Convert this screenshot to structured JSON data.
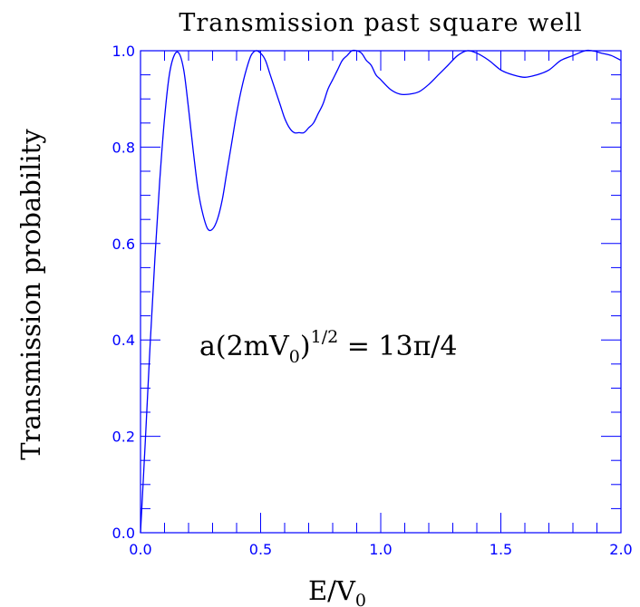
{
  "chart_data": {
    "type": "line",
    "title": "Transmission past square well",
    "xlabel": "E/V",
    "xlabel_sub": "0",
    "ylabel": "Transmission probability",
    "xlim": [
      0,
      2
    ],
    "ylim": [
      0,
      1
    ],
    "x_ticks": [
      "0.0",
      "0.5",
      "1.0",
      "1.5",
      "2.0"
    ],
    "y_ticks": [
      "0.0",
      "0.2",
      "0.4",
      "0.6",
      "0.8",
      "1.0"
    ],
    "grid": false,
    "annotation": {
      "prefix": "a(2mV",
      "sub": "0",
      "close": ")",
      "sup": "1/2",
      "rhs": " = 13π/4"
    },
    "series": [
      {
        "x": [
          0.0,
          0.02,
          0.04,
          0.06,
          0.08,
          0.1,
          0.12,
          0.14,
          0.16,
          0.18,
          0.2,
          0.22,
          0.24,
          0.26,
          0.28,
          0.3,
          0.32,
          0.34,
          0.36,
          0.38,
          0.4,
          0.42,
          0.44,
          0.46,
          0.48,
          0.5,
          0.52,
          0.54,
          0.56,
          0.58,
          0.6,
          0.62,
          0.64,
          0.66,
          0.68,
          0.7,
          0.72,
          0.74,
          0.76,
          0.78,
          0.8,
          0.82,
          0.84,
          0.86,
          0.88,
          0.9,
          0.92,
          0.94,
          0.96,
          0.98,
          1.0,
          1.04,
          1.08,
          1.12,
          1.16,
          1.2,
          1.24,
          1.28,
          1.32,
          1.36,
          1.4,
          1.45,
          1.5,
          1.55,
          1.6,
          1.65,
          1.7,
          1.75,
          1.8,
          1.85,
          1.88,
          1.92,
          1.96,
          2.0
        ],
        "y": [
          0.0,
          0.19,
          0.39,
          0.57,
          0.73,
          0.86,
          0.95,
          0.99,
          0.995,
          0.96,
          0.88,
          0.79,
          0.71,
          0.66,
          0.63,
          0.63,
          0.65,
          0.69,
          0.75,
          0.81,
          0.87,
          0.92,
          0.96,
          0.99,
          1.0,
          0.995,
          0.98,
          0.95,
          0.92,
          0.89,
          0.86,
          0.84,
          0.83,
          0.83,
          0.83,
          0.84,
          0.85,
          0.87,
          0.89,
          0.92,
          0.94,
          0.96,
          0.98,
          0.99,
          1.0,
          1.0,
          0.995,
          0.98,
          0.97,
          0.95,
          0.94,
          0.92,
          0.91,
          0.91,
          0.915,
          0.93,
          0.95,
          0.97,
          0.99,
          1.0,
          0.995,
          0.98,
          0.96,
          0.95,
          0.945,
          0.95,
          0.96,
          0.98,
          0.99,
          1.0,
          1.0,
          0.995,
          0.99,
          0.98
        ]
      }
    ]
  }
}
